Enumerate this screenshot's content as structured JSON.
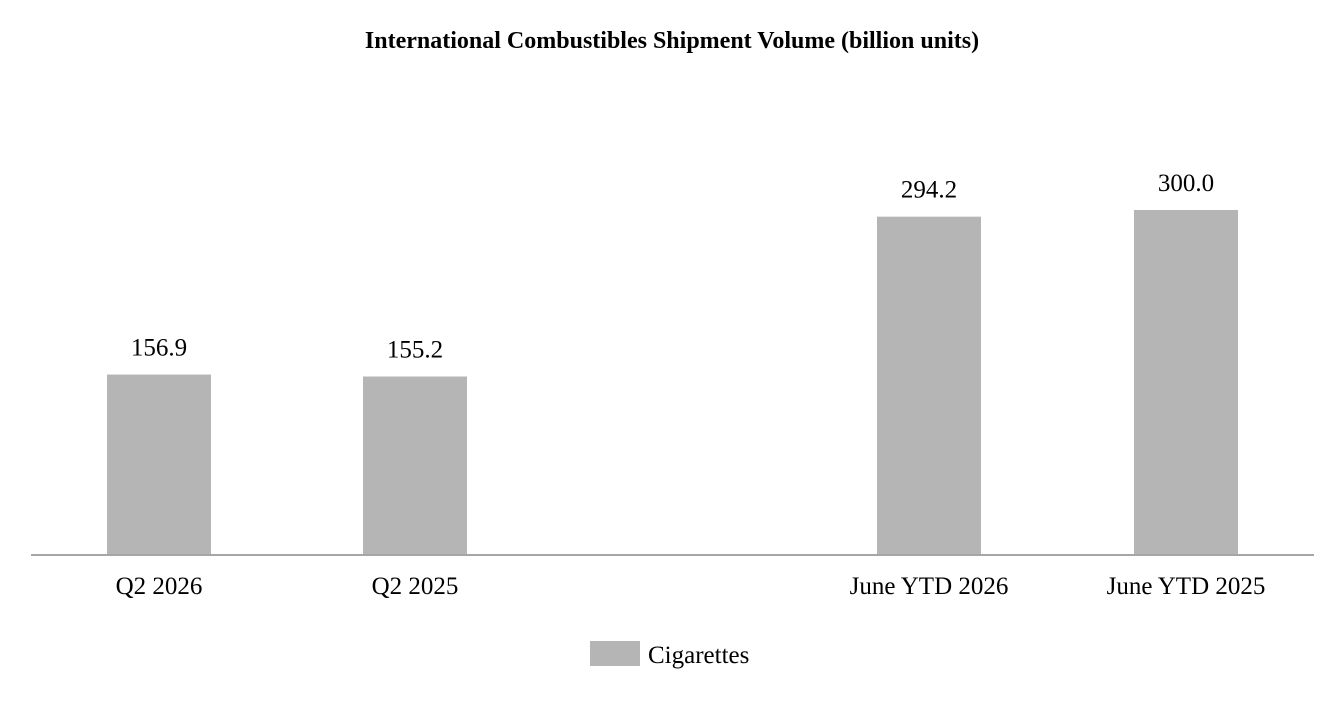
{
  "chart_data": {
    "type": "bar",
    "title": "International Combustibles Shipment Volume (billion units)",
    "categories": [
      "Q2 2026",
      "Q2 2025",
      "June YTD 2026",
      "June YTD 2025"
    ],
    "series": [
      {
        "name": "Cigarettes",
        "values": [
          156.9,
          155.2,
          294.2,
          300.0
        ],
        "labels": [
          "156.9",
          "155.2",
          "294.2",
          "300.0"
        ],
        "color": "#b5b5b5"
      }
    ],
    "ylim": [
      0,
      300
    ],
    "grid": false,
    "legend_position": "bottom-center",
    "axis_color": "#a6a6a6"
  }
}
